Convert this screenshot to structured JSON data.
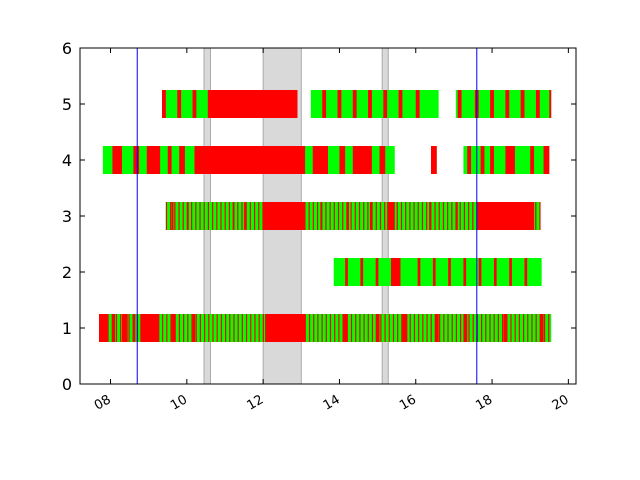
{
  "chart_data": {
    "type": "broken_barh",
    "title": "",
    "xlabel": "",
    "ylabel": "",
    "xlim": [
      7.2,
      20.2
    ],
    "ylim": [
      0,
      6
    ],
    "xticks": [
      8,
      10,
      12,
      14,
      16,
      18,
      20
    ],
    "xtick_labels": [
      "08",
      "10",
      "12",
      "14",
      "16",
      "18",
      "20"
    ],
    "yticks": [
      0,
      1,
      2,
      3,
      4,
      5,
      6
    ],
    "ytick_labels": [
      "0",
      "1",
      "2",
      "3",
      "4",
      "5",
      "6"
    ],
    "bar_height": 0.5,
    "colors": {
      "on": "#00ff00",
      "off": "#ff0000",
      "shade": "#d9d9d9",
      "marker": "#0000ff"
    },
    "shaded_spans": [
      [
        10.45,
        10.62
      ],
      [
        12.0,
        13.0
      ],
      [
        15.12,
        15.28
      ]
    ],
    "vlines": [
      8.7,
      17.6
    ],
    "rows": [
      {
        "y": 1,
        "range": [
          7.7,
          19.55
        ],
        "red": [
          [
            7.7,
            7.92
          ],
          [
            8.05,
            8.12
          ],
          [
            8.3,
            8.45
          ],
          [
            8.58,
            8.65
          ],
          [
            8.78,
            9.28
          ],
          [
            9.6,
            9.7
          ],
          [
            10.15,
            10.22
          ],
          [
            12.05,
            13.1
          ],
          [
            14.1,
            14.2
          ],
          [
            14.95,
            15.05
          ],
          [
            15.65,
            15.78
          ],
          [
            16.5,
            16.6
          ],
          [
            17.25,
            17.35
          ],
          [
            18.3,
            18.4
          ],
          [
            19.25,
            19.35
          ]
        ]
      },
      {
        "y": 2,
        "range": [
          13.85,
          19.3
        ],
        "red": [
          [
            14.15,
            14.22
          ],
          [
            14.55,
            14.62
          ],
          [
            14.95,
            15.02
          ],
          [
            15.35,
            15.6
          ],
          [
            16.05,
            16.12
          ],
          [
            16.45,
            16.52
          ],
          [
            16.85,
            16.92
          ],
          [
            17.25,
            17.32
          ],
          [
            17.65,
            17.72
          ],
          [
            18.05,
            18.12
          ],
          [
            18.45,
            18.52
          ],
          [
            18.85,
            18.92
          ]
        ]
      },
      {
        "y": 3,
        "range": [
          9.45,
          19.25
        ],
        "red": [
          [
            9.6,
            9.65
          ],
          [
            10.0,
            10.05
          ],
          [
            11.2,
            11.25
          ],
          [
            11.5,
            11.55
          ],
          [
            12.0,
            13.1
          ],
          [
            13.5,
            13.55
          ],
          [
            14.2,
            14.25
          ],
          [
            14.8,
            14.85
          ],
          [
            15.25,
            15.45
          ],
          [
            16.35,
            16.4
          ],
          [
            17.05,
            17.1
          ],
          [
            17.6,
            19.1
          ]
        ]
      },
      {
        "y": 4,
        "range": [
          7.8,
          19.5
        ],
        "red": [
          [
            8.05,
            8.3
          ],
          [
            8.6,
            8.75
          ],
          [
            8.95,
            9.3
          ],
          [
            9.5,
            9.6
          ],
          [
            9.8,
            9.95
          ],
          [
            10.2,
            13.1
          ],
          [
            13.3,
            13.7
          ],
          [
            14.0,
            14.15
          ],
          [
            14.35,
            14.85
          ],
          [
            15.05,
            15.2
          ],
          [
            16.4,
            16.55
          ],
          [
            17.35,
            17.45
          ],
          [
            17.7,
            17.8
          ],
          [
            17.95,
            18.05
          ],
          [
            18.35,
            18.6
          ],
          [
            19.0,
            19.1
          ],
          [
            19.35,
            19.5
          ]
        ]
      },
      {
        "y": 5,
        "range": [
          9.35,
          19.55
        ],
        "red": [
          [
            9.35,
            9.45
          ],
          [
            9.75,
            9.85
          ],
          [
            10.15,
            10.25
          ],
          [
            10.55,
            12.9
          ],
          [
            13.55,
            13.65
          ],
          [
            13.95,
            14.05
          ],
          [
            14.35,
            14.45
          ],
          [
            14.75,
            14.85
          ],
          [
            15.15,
            15.25
          ],
          [
            15.55,
            15.65
          ],
          [
            16.0,
            16.1
          ],
          [
            17.1,
            17.2
          ],
          [
            17.55,
            17.65
          ],
          [
            17.95,
            18.05
          ],
          [
            18.35,
            18.45
          ],
          [
            18.75,
            18.85
          ],
          [
            19.15,
            19.25
          ],
          [
            19.5,
            19.55
          ]
        ]
      }
    ],
    "row_gaps": [
      {
        "y": 4,
        "gaps": [
          [
            15.45,
            16.4
          ],
          [
            16.55,
            17.25
          ]
        ]
      },
      {
        "y": 5,
        "gaps": [
          [
            12.9,
            13.25
          ],
          [
            16.6,
            17.05
          ]
        ]
      }
    ]
  }
}
